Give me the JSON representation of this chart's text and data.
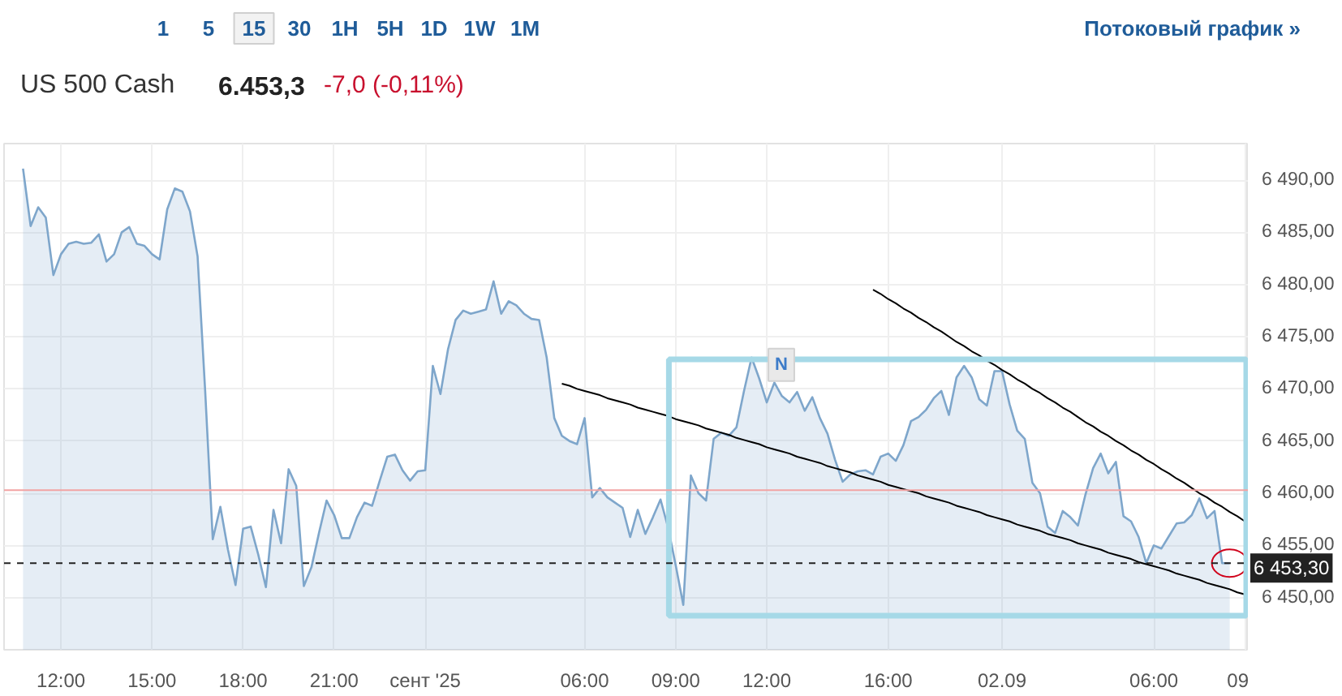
{
  "chart_data": {
    "type": "area",
    "title": "US 500 Cash",
    "subtitle": "6.453,3",
    "annotations": [
      "1 5 15 30 1H 5H 1D 1W 1M",
      "Потоковый график »",
      "-7,0 (-0,11%)",
      {
        "text": "N",
        "y": 6472.3
      }
    ],
    "categories": [
      null,
      null,
      null,
      null,
      null,
      "12:00",
      null,
      null,
      null,
      null,
      null,
      null,
      null,
      null,
      null,
      null,
      null,
      "15:00",
      null,
      null,
      null,
      null,
      null,
      null,
      null,
      null,
      null,
      null,
      null,
      "18:00",
      null,
      null,
      null,
      null,
      null,
      null,
      null,
      null,
      null,
      null,
      null,
      "21:00",
      null,
      null,
      null,
      null,
      null,
      null,
      null,
      null,
      null,
      null,
      null,
      "сент '25",
      null,
      null,
      null,
      null,
      null,
      null,
      null,
      null,
      null,
      null,
      null,
      null,
      null,
      null,
      null,
      null,
      null,
      null,
      null,
      null,
      "06:00",
      null,
      null,
      null,
      null,
      null,
      null,
      null,
      null,
      null,
      null,
      null,
      "09:00",
      null,
      null,
      null,
      null,
      null,
      null,
      null,
      null,
      null,
      null,
      null,
      "12:00",
      null,
      null,
      null,
      null,
      null,
      null,
      null,
      null,
      null,
      null,
      null,
      null,
      null,
      null,
      null,
      "16:00",
      null,
      null,
      null,
      null,
      null,
      null,
      null,
      null,
      null,
      null,
      null,
      null,
      null,
      null,
      "02.09",
      null,
      null,
      null,
      null,
      null,
      null,
      null,
      null,
      null,
      null,
      null,
      null,
      null,
      null,
      null,
      null,
      null,
      null,
      null,
      "06:00",
      null,
      null,
      null,
      null,
      null,
      null,
      null,
      null,
      null,
      null,
      null,
      "09"
    ],
    "ylim": [
      6445,
      6493.5
    ],
    "yticks": [
      {
        "value": 6450,
        "label": "6 450,00"
      },
      {
        "value": 6455,
        "label": "6 455,00"
      },
      {
        "value": 6460,
        "label": "6 460,00"
      },
      {
        "value": 6465,
        "label": "6 465,00"
      },
      {
        "value": 6470,
        "label": "6 470,00"
      },
      {
        "value": 6475,
        "label": "6 475,00"
      },
      {
        "value": 6480,
        "label": "6 480,00"
      },
      {
        "value": 6485,
        "label": "6 485,00"
      },
      {
        "value": 6490,
        "label": "6 490,00"
      }
    ],
    "grid": true,
    "ref_lines": [
      {
        "axis": "y",
        "value": 6460.3,
        "color": "#f2a3a3"
      },
      {
        "axis": "y",
        "value": 6453.3,
        "label": "6 453,30",
        "color": "#222222",
        "line_style": "dashed"
      }
    ],
    "series": [
      {
        "color": "#7ea6cb",
        "values": [
          6491.1,
          6485.6,
          6487.4,
          6486.4,
          6480.9,
          6482.9,
          6483.9,
          6484.1,
          6483.9,
          6484.0,
          6484.8,
          6482.2,
          6482.9,
          6485.0,
          6485.5,
          6483.9,
          6483.7,
          6482.9,
          6482.4,
          6487.2,
          6489.2,
          6488.9,
          6487.0,
          6482.7,
          6469.8,
          6455.6,
          6458.7,
          6454.6,
          6451.2,
          6456.6,
          6456.8,
          6454.1,
          6451.0,
          6458.4,
          6455.2,
          6462.3,
          6460.7,
          6451.1,
          6452.9,
          6456.2,
          6459.3,
          6457.9,
          6455.7,
          6455.7,
          6457.7,
          6459.1,
          6458.8,
          6461.2,
          6463.5,
          6463.7,
          6462.2,
          6461.2,
          6462.1,
          6462.2,
          6472.2,
          6469.5,
          6473.8,
          6476.6,
          6477.5,
          6477.2,
          6477.4,
          6477.6,
          6480.3,
          6477.2,
          6478.4,
          6478.0,
          6477.2,
          6476.7,
          6476.6,
          6473.0,
          6467.2,
          6465.5,
          6465.0,
          6464.7,
          6467.2,
          6459.6,
          6460.5,
          6459.6,
          6459.1,
          6458.6,
          6455.8,
          6458.4,
          6456.1,
          6457.7,
          6459.4,
          6456.7,
          6453.1,
          6449.3,
          6461.7,
          6460.0,
          6459.3,
          6465.2,
          6465.8,
          6465.5,
          6466.3,
          6469.8,
          6473.0,
          6471.0,
          6468.7,
          6470.6,
          6469.3,
          6468.7,
          6469.7,
          6467.9,
          6469.2,
          6467.2,
          6465.7,
          6463.2,
          6461.1,
          6461.8,
          6462.1,
          6462.2,
          6461.8,
          6463.5,
          6463.8,
          6463.1,
          6464.6,
          6466.9,
          6467.3,
          6468.0,
          6469.1,
          6469.8,
          6467.5,
          6471.1,
          6472.2,
          6471.1,
          6469.0,
          6468.4,
          6471.7,
          6471.7,
          6468.5,
          6466.0,
          6465.2,
          6461.0,
          6460.0,
          6456.8,
          6456.2,
          6458.3,
          6457.7,
          6456.9,
          6459.9,
          6462.4,
          6463.8,
          6461.9,
          6463.0,
          6457.8,
          6457.3,
          6455.8,
          6453.3,
          6455.0,
          6454.7,
          6455.9,
          6457.1,
          6457.2,
          6457.9,
          6459.5,
          6457.6,
          6458.3,
          6453.3,
          6453.3,
          null,
          null
        ]
      },
      {
        "type": "line",
        "color": "#000000",
        "values": [
          null,
          null,
          null,
          null,
          null,
          null,
          null,
          null,
          null,
          null,
          null,
          null,
          null,
          null,
          null,
          null,
          null,
          null,
          null,
          null,
          null,
          null,
          null,
          null,
          null,
          null,
          null,
          null,
          null,
          null,
          null,
          null,
          null,
          null,
          null,
          null,
          null,
          null,
          null,
          null,
          null,
          null,
          null,
          null,
          null,
          null,
          null,
          null,
          null,
          null,
          null,
          null,
          null,
          null,
          null,
          null,
          null,
          null,
          null,
          null,
          null,
          null,
          null,
          null,
          null,
          null,
          null,
          null,
          null,
          null,
          null,
          6470.5,
          6470.3,
          6470.0,
          6469.8,
          6469.6,
          6469.4,
          6469.1,
          6468.9,
          6468.7,
          6468.5,
          6468.2,
          6468.0,
          6467.8,
          6467.6,
          6467.4,
          6467.1,
          6466.9,
          6466.7,
          6466.5,
          6466.2,
          6466.0,
          6465.8,
          6465.6,
          6465.3,
          6465.1,
          6464.9,
          6464.7,
          6464.4,
          6464.2,
          6464.0,
          6463.8,
          6463.5,
          6463.3,
          6463.1,
          6462.9,
          6462.6,
          6462.4,
          6462.2,
          6462.0,
          6461.7,
          6461.5,
          6461.3,
          6461.1,
          6460.8,
          6460.6,
          6460.4,
          6460.2,
          6460.0,
          6459.7,
          6459.5,
          6459.3,
          6459.1,
          6458.8,
          6458.6,
          6458.4,
          6458.2,
          6457.9,
          6457.7,
          6457.5,
          6457.3,
          6457.0,
          6456.8,
          6456.6,
          6456.4,
          6456.1,
          6455.9,
          6455.7,
          6455.5,
          6455.2,
          6455.0,
          6454.8,
          6454.6,
          6454.3,
          6454.1,
          6453.9,
          6453.7,
          6453.4,
          6453.2,
          6453.0,
          6452.8,
          6452.6,
          6452.3,
          6452.1,
          6451.9,
          6451.7,
          6451.4,
          6451.2,
          6451.0,
          6450.8,
          6450.5,
          6450.3
        ]
      },
      {
        "type": "line",
        "color": "#000000",
        "values": [
          null,
          null,
          null,
          null,
          null,
          null,
          null,
          null,
          null,
          null,
          null,
          null,
          null,
          null,
          null,
          null,
          null,
          null,
          null,
          null,
          null,
          null,
          null,
          null,
          null,
          null,
          null,
          null,
          null,
          null,
          null,
          null,
          null,
          null,
          null,
          null,
          null,
          null,
          null,
          null,
          null,
          null,
          null,
          null,
          null,
          null,
          null,
          null,
          null,
          null,
          null,
          null,
          null,
          null,
          null,
          null,
          null,
          null,
          null,
          null,
          null,
          null,
          null,
          null,
          null,
          null,
          null,
          null,
          null,
          null,
          null,
          null,
          null,
          null,
          null,
          null,
          null,
          null,
          null,
          null,
          null,
          null,
          null,
          null,
          null,
          null,
          null,
          null,
          null,
          null,
          null,
          null,
          null,
          null,
          null,
          null,
          null,
          null,
          null,
          null,
          null,
          null,
          null,
          null,
          null,
          null,
          null,
          null,
          null,
          null,
          null,
          null,
          6479.5,
          6479.1,
          6478.6,
          6478.2,
          6477.7,
          6477.3,
          6476.8,
          6476.4,
          6475.9,
          6475.5,
          6475.0,
          6474.5,
          6474.1,
          6473.6,
          6473.2,
          6472.7,
          6472.3,
          6471.8,
          6471.4,
          6470.9,
          6470.5,
          6470.0,
          6469.6,
          6469.1,
          6468.7,
          6468.2,
          6467.8,
          6467.3,
          6466.8,
          6466.4,
          6465.9,
          6465.5,
          6465.0,
          6464.6,
          6464.1,
          6463.7,
          6463.2,
          6462.8,
          6462.3,
          6461.9,
          6461.4,
          6461.0,
          6460.5,
          6460.0,
          6459.6,
          6459.1,
          6458.7,
          6458.2,
          6457.8,
          6457.3
        ]
      }
    ]
  }
}
